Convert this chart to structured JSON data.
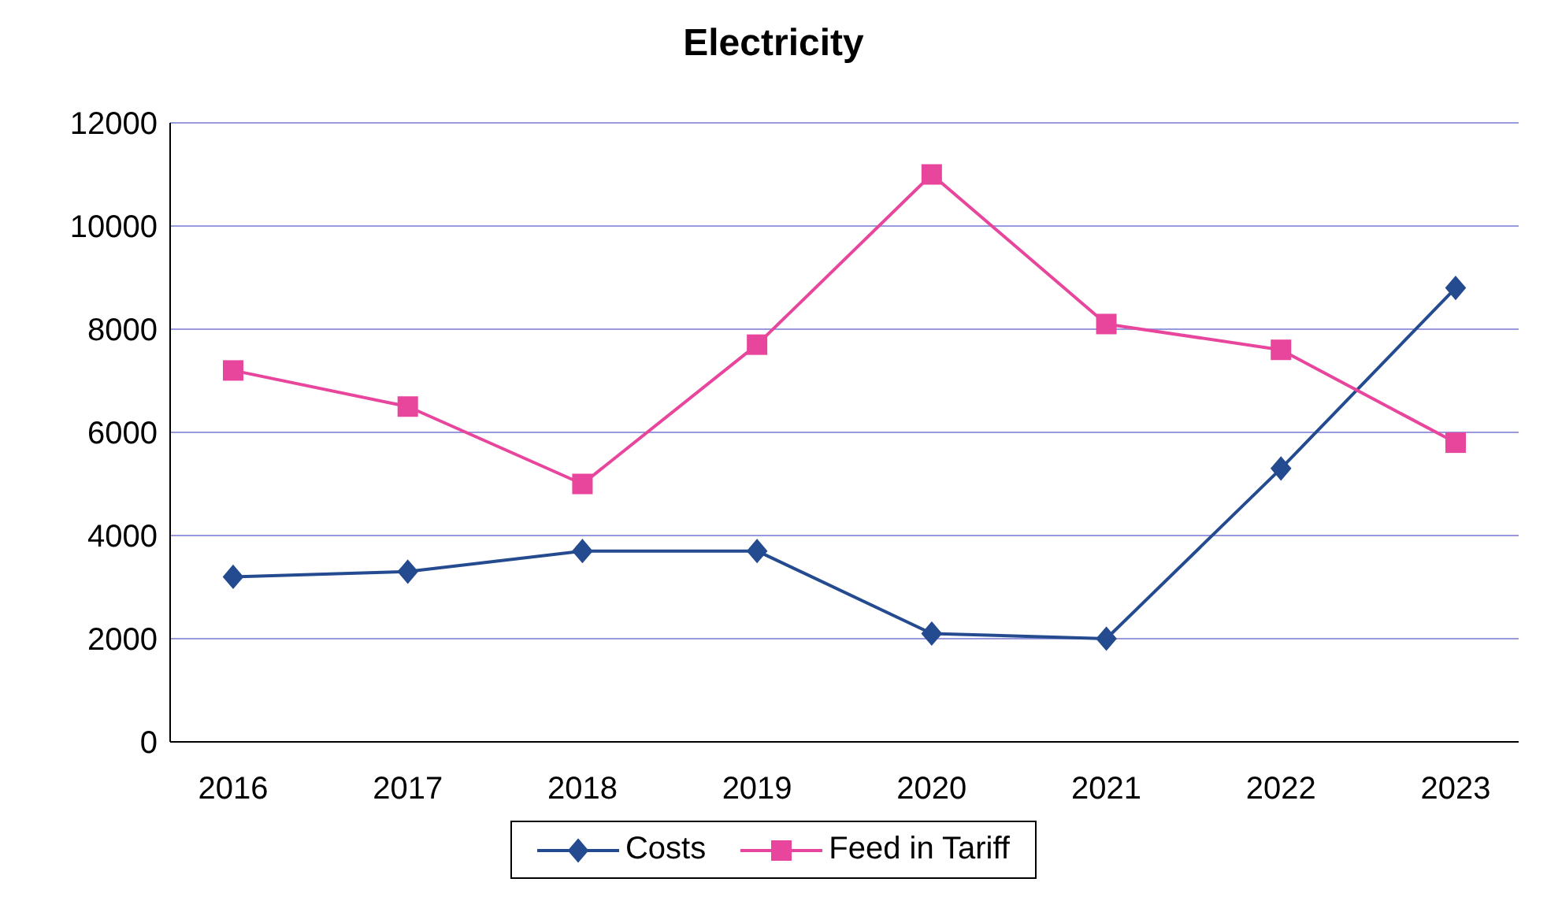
{
  "chart_data": {
    "type": "line",
    "title": "Electricity",
    "categories": [
      "2016",
      "2017",
      "2018",
      "2019",
      "2020",
      "2021",
      "2022",
      "2023"
    ],
    "series": [
      {
        "name": "Costs",
        "color": "#244b8f",
        "marker": "diamond",
        "values": [
          3200,
          3300,
          3700,
          3700,
          2100,
          2000,
          5300,
          8800
        ]
      },
      {
        "name": "Feed in Tariff",
        "color": "#e8459c",
        "marker": "square",
        "values": [
          7200,
          6500,
          5000,
          7700,
          11000,
          8100,
          7600,
          5800
        ]
      }
    ],
    "ylim": [
      0,
      12000
    ],
    "yticks": [
      0,
      2000,
      4000,
      6000,
      8000,
      10000,
      12000
    ],
    "grid": "y",
    "legend": "bottom",
    "line_style": "solid"
  }
}
